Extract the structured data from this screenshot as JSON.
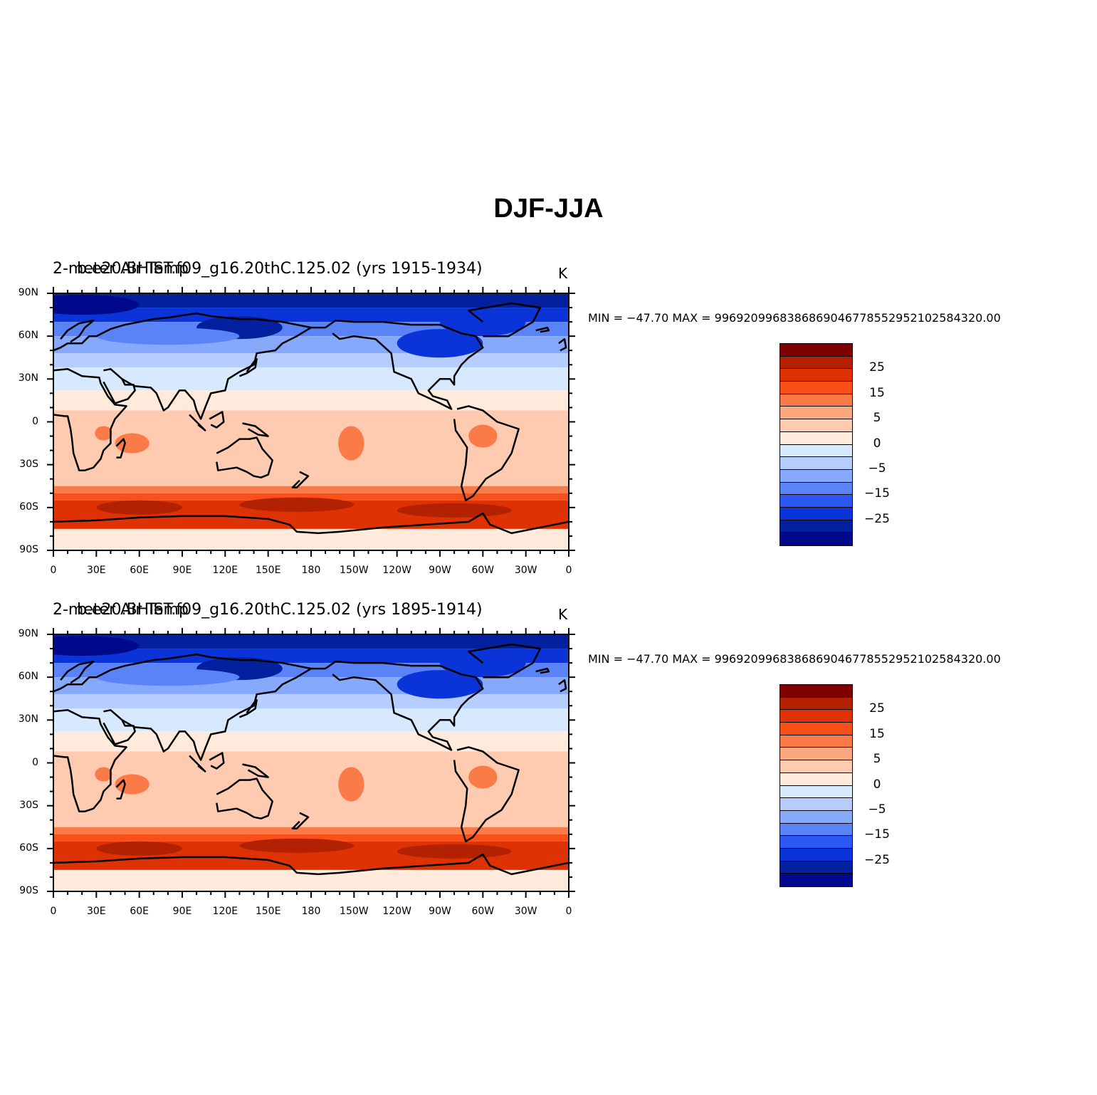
{
  "title": "DJF-JJA",
  "panels": [
    {
      "left_string": "2-meter Air Temp",
      "center_string": "b.e20.BHIST.f09_g16.20thC.125.02 (yrs 1915-1934)",
      "units": "K",
      "minmax": "MIN = −47.70  MAX = 996920996838686904677855295210258432 0.00"
    },
    {
      "left_string": "2-meter Air Temp",
      "center_string": "b.e20.BHIST.f09_g16.20thC.125.02 (yrs 1895-1914)",
      "units": "K",
      "minmax": "MIN = −47.70  MAX = 996920996838686904677855295210258432 0.00"
    }
  ],
  "lat_ticks": [
    "90N",
    "60N",
    "30N",
    "0",
    "30S",
    "60S",
    "90S"
  ],
  "lon_ticks": [
    "0",
    "30E",
    "60E",
    "90E",
    "120E",
    "150E",
    "180",
    "150W",
    "120W",
    "90W",
    "60W",
    "30W",
    "0"
  ],
  "colorbar": {
    "labels": [
      "25",
      "15",
      "5",
      "0",
      "−5",
      "−15",
      "−25"
    ],
    "colors": [
      "#7f0000",
      "#b22202",
      "#de3204",
      "#f9501a",
      "#fa7a48",
      "#fba87e",
      "#fecab0",
      "#ffeadb",
      "#d7e9ff",
      "#b5ceff",
      "#86a9fb",
      "#5b83f8",
      "#2b58f5",
      "#0b34d8",
      "#03209e",
      "#00098c"
    ]
  }
}
